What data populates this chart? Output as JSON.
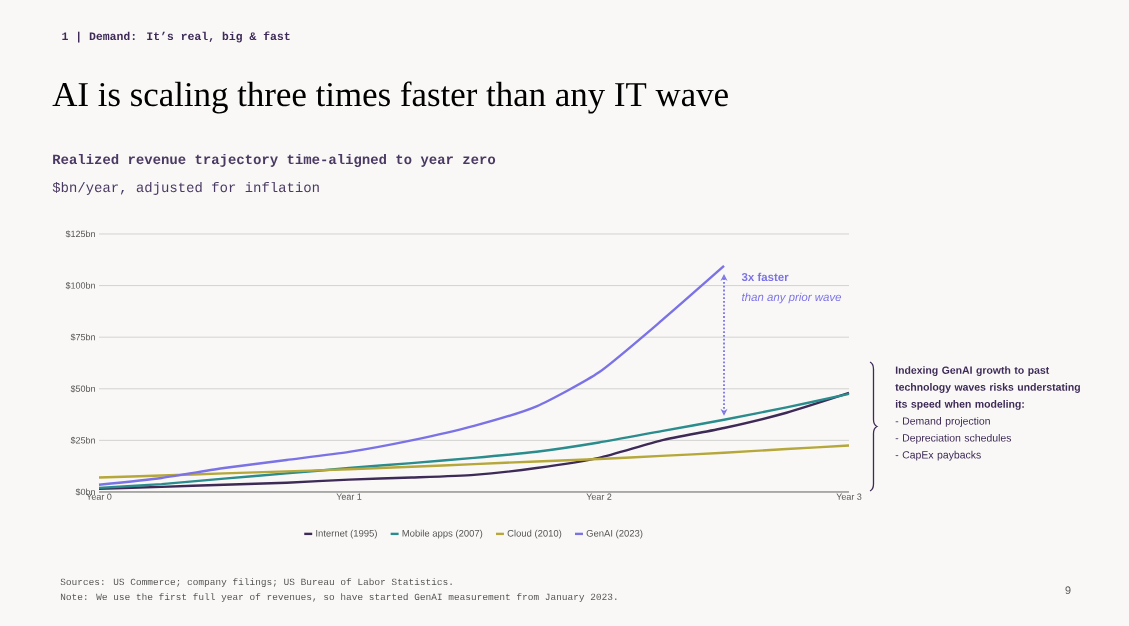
{
  "chart_data": {
    "type": "line",
    "title": "AI is scaling three times faster than any IT wave",
    "subtitle": "Realized revenue trajectory time-aligned to year zero",
    "ylabel": "$bn/year, adjusted for inflation",
    "categories": [
      "Year 0",
      null,
      null,
      null,
      "Year 1",
      null,
      null,
      null,
      "Year 2",
      null,
      null,
      null,
      "Year 3"
    ],
    "ylim": [
      0,
      125
    ],
    "yticks": [
      {
        "value": 0,
        "label": "$0bn"
      },
      {
        "value": 25,
        "label": "$25bn"
      },
      {
        "value": 50,
        "label": "$50bn"
      },
      {
        "value": 75,
        "label": "$75bn"
      },
      {
        "value": 100,
        "label": "$100bn"
      },
      {
        "value": 125,
        "label": "$125bn"
      }
    ],
    "grid": "y",
    "legend": "bottom",
    "series": [
      {
        "name": "Internet (1995)",
        "color": "#3d2a57",
        "values": [
          1.5,
          2.5,
          3.5,
          4.5,
          6,
          7,
          8.3,
          11.6,
          16.5,
          25,
          31,
          38.4,
          48
        ]
      },
      {
        "name": "Mobile apps (2007)",
        "color": "#2a8c8c",
        "values": [
          2,
          3.8,
          6.5,
          9,
          11.6,
          14,
          16.5,
          19.5,
          24,
          29.5,
          35,
          41,
          47.5
        ]
      },
      {
        "name": "Cloud (2010)",
        "color": "#b5a73a",
        "values": [
          7,
          8,
          9,
          10,
          11,
          12.2,
          13.5,
          14.8,
          16,
          17.5,
          19,
          20.8,
          22.5
        ]
      },
      {
        "name": "GenAI (2023)",
        "color": "#7b72e6",
        "values": [
          3.5,
          6.8,
          11.6,
          15.5,
          19.4,
          25,
          32,
          41.5,
          58,
          83,
          109.5,
          null,
          null
        ]
      }
    ],
    "annotations": [
      "1 | Demand: It’s real, big & fast",
      "3x faster",
      "than any prior wave",
      "Indexing GenAI growth to past technology waves risks understating its speed when modeling:",
      "- Demand projection",
      "- Depreciation schedules",
      "- CapEx paybacks",
      "Sources: US Commerce; company filings; US Bureau of Labor Statistics.",
      "Note: We use the first full year of revenues, so have started GenAI measurement from January 2023.",
      "9"
    ]
  }
}
